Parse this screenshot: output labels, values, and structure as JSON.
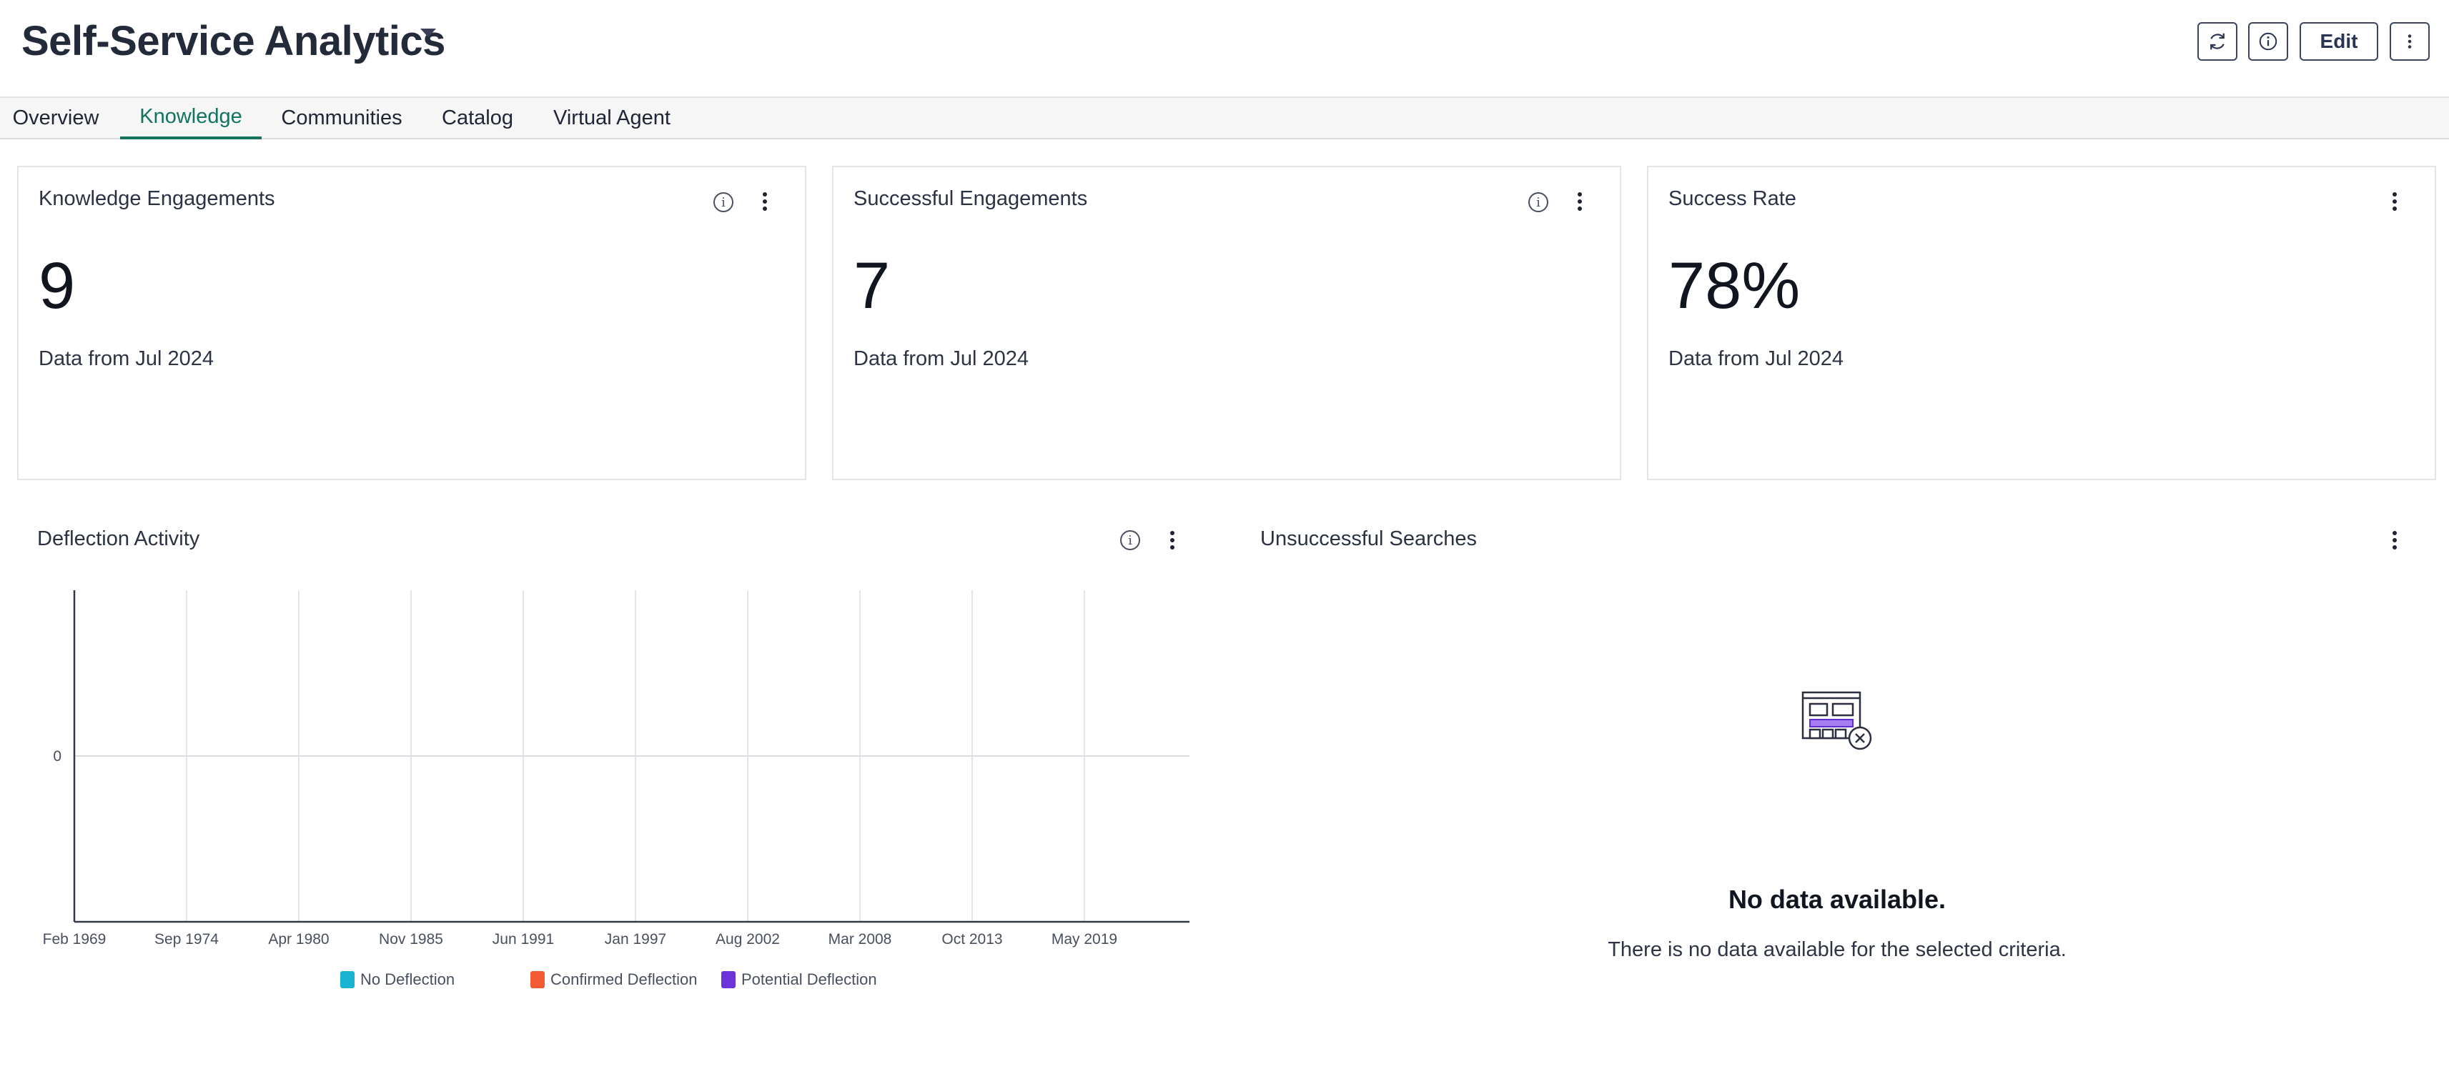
{
  "header": {
    "title": "Self-Service Analytics",
    "edit_label": "Edit",
    "icons": [
      "refresh-icon",
      "info-icon",
      "more-vertical-icon"
    ]
  },
  "tabs": [
    {
      "label": "Overview",
      "active": false
    },
    {
      "label": "Knowledge",
      "active": true
    },
    {
      "label": "Communities",
      "active": false
    },
    {
      "label": "Catalog",
      "active": false
    },
    {
      "label": "Virtual Agent",
      "active": false
    }
  ],
  "cards": [
    {
      "title": "Knowledge Engagements",
      "value": "9",
      "subtitle": "Data from Jul 2024"
    },
    {
      "title": "Successful Engagements",
      "value": "7",
      "subtitle": "Data from Jul 2024"
    },
    {
      "title": "Success Rate",
      "value": "78%",
      "subtitle": "Data from Jul 2024"
    }
  ],
  "deflection": {
    "title": "Deflection Activity"
  },
  "chart_data": {
    "type": "line",
    "title": "Deflection Activity",
    "x_ticks": [
      "Feb 1969",
      "Sep 1974",
      "Apr 1980",
      "Nov 1985",
      "Jun 1991",
      "Jan 1997",
      "Aug 2002",
      "Mar 2008",
      "Oct 2013",
      "May 2019"
    ],
    "y_ticks": [
      "0"
    ],
    "series": [
      {
        "name": "No Deflection",
        "color": "#1ab3d1",
        "values": []
      },
      {
        "name": "Confirmed Deflection",
        "color": "#f25a32",
        "values": []
      },
      {
        "name": "Potential Deflection",
        "color": "#6a34d9",
        "values": []
      }
    ],
    "grid": true,
    "legend": "bottom"
  },
  "unsuccessful": {
    "title": "Unsuccessful Searches",
    "empty_title": "No data available.",
    "empty_subtitle": "There is no data available for the selected criteria."
  }
}
